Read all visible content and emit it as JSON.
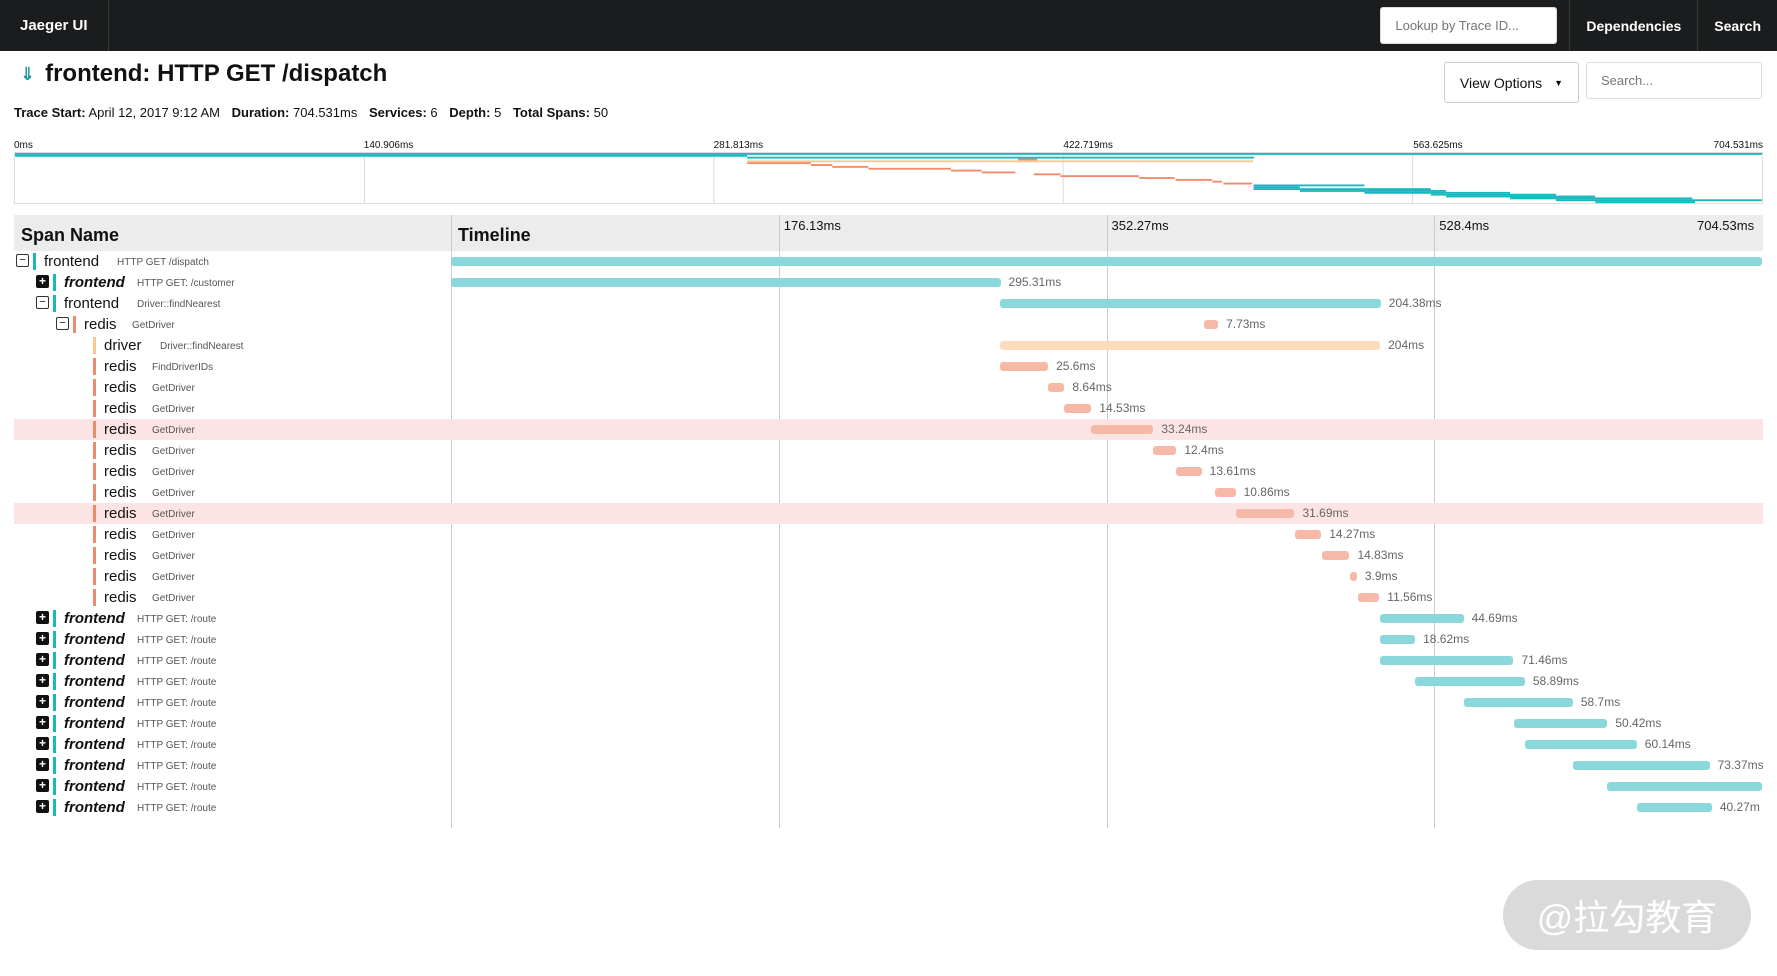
{
  "topbar": {
    "brand": "Jaeger UI",
    "lookup_placeholder": "Lookup by Trace ID...",
    "dependencies": "Dependencies",
    "search": "Search"
  },
  "trace": {
    "title": "frontend: HTTP GET /dispatch",
    "view_options": "View Options",
    "search_placeholder": "Search...",
    "meta": {
      "trace_start_label": "Trace Start:",
      "trace_start": "April 12, 2017 9:12 AM",
      "duration_label": "Duration:",
      "duration": "704.531ms",
      "services_label": "Services:",
      "services": "6",
      "depth_label": "Depth:",
      "depth": "5",
      "total_spans_label": "Total Spans:",
      "total_spans": "50"
    }
  },
  "minimap_ticks": [
    "0ms",
    "140.906ms",
    "281.813ms",
    "422.719ms",
    "563.625ms",
    "704.531ms"
  ],
  "header": {
    "span_name": "Span Name",
    "timeline": "Timeline"
  },
  "timeline_ticks": [
    "176.13ms",
    "352.27ms",
    "528.4ms",
    "704.53ms"
  ],
  "total_ms": 704.53,
  "colors": {
    "frontend": "#8ad7dc",
    "redis": "#f7b9a7",
    "driver": "#fcdcbb",
    "frontend_bar": "#17b8be",
    "redis_bar": "#f08a6c",
    "driver_bar": "#fbc790",
    "highlight": "#fde4e4"
  },
  "spans": [
    {
      "depth": 0,
      "toggle": "minus",
      "service": "frontend",
      "op": "HTTP GET /dispatch",
      "start": 0,
      "dur": 704.53,
      "label": "",
      "kind": "frontend"
    },
    {
      "depth": 1,
      "toggle": "plus",
      "service": "frontend",
      "op": "HTTP GET: /customer",
      "start": 0,
      "dur": 295.31,
      "label": "295.31ms",
      "kind": "frontend"
    },
    {
      "depth": 1,
      "toggle": "minus",
      "service": "frontend",
      "op": "Driver::findNearest",
      "start": 295.3,
      "dur": 204.38,
      "label": "204.38ms",
      "kind": "frontend"
    },
    {
      "depth": 2,
      "toggle": "minus",
      "service": "redis",
      "op": "GetDriver",
      "start": 404.5,
      "dur": 7.73,
      "label": "7.73ms",
      "kind": "redis"
    },
    {
      "depth": 3,
      "toggle": "",
      "service": "driver",
      "op": "Driver::findNearest",
      "start": 295.3,
      "dur": 204,
      "label": "204ms",
      "kind": "driver"
    },
    {
      "depth": 3,
      "toggle": "",
      "service": "redis",
      "op": "FindDriverIDs",
      "start": 295.3,
      "dur": 25.6,
      "label": "25.6ms",
      "kind": "redis"
    },
    {
      "depth": 3,
      "toggle": "",
      "service": "redis",
      "op": "GetDriver",
      "start": 321,
      "dur": 8.64,
      "label": "8.64ms",
      "kind": "redis"
    },
    {
      "depth": 3,
      "toggle": "",
      "service": "redis",
      "op": "GetDriver",
      "start": 329.6,
      "dur": 14.53,
      "label": "14.53ms",
      "kind": "redis"
    },
    {
      "depth": 3,
      "toggle": "",
      "service": "redis",
      "op": "GetDriver",
      "start": 344.2,
      "dur": 33.24,
      "label": "33.24ms",
      "kind": "redis",
      "hl": true
    },
    {
      "depth": 3,
      "toggle": "",
      "service": "redis",
      "op": "GetDriver",
      "start": 377.4,
      "dur": 12.4,
      "label": "12.4ms",
      "kind": "redis"
    },
    {
      "depth": 3,
      "toggle": "",
      "service": "redis",
      "op": "GetDriver",
      "start": 389.8,
      "dur": 13.61,
      "label": "13.61ms",
      "kind": "redis"
    },
    {
      "depth": 3,
      "toggle": "",
      "service": "redis",
      "op": "GetDriver",
      "start": 410.8,
      "dur": 10.86,
      "label": "10.86ms",
      "kind": "redis"
    },
    {
      "depth": 3,
      "toggle": "",
      "service": "redis",
      "op": "GetDriver",
      "start": 421.6,
      "dur": 31.69,
      "label": "31.69ms",
      "kind": "redis",
      "hl": true
    },
    {
      "depth": 3,
      "toggle": "",
      "service": "redis",
      "op": "GetDriver",
      "start": 453.4,
      "dur": 14.27,
      "label": "14.27ms",
      "kind": "redis"
    },
    {
      "depth": 3,
      "toggle": "",
      "service": "redis",
      "op": "GetDriver",
      "start": 468,
      "dur": 14.83,
      "label": "14.83ms",
      "kind": "redis"
    },
    {
      "depth": 3,
      "toggle": "",
      "service": "redis",
      "op": "GetDriver",
      "start": 482.9,
      "dur": 3.9,
      "label": "3.9ms",
      "kind": "redis"
    },
    {
      "depth": 3,
      "toggle": "",
      "service": "redis",
      "op": "GetDriver",
      "start": 487.3,
      "dur": 11.56,
      "label": "11.56ms",
      "kind": "redis"
    },
    {
      "depth": 1,
      "toggle": "plus",
      "service": "frontend",
      "op": "HTTP GET: /route",
      "start": 499.5,
      "dur": 44.69,
      "label": "44.69ms",
      "kind": "frontend"
    },
    {
      "depth": 1,
      "toggle": "plus",
      "service": "frontend",
      "op": "HTTP GET: /route",
      "start": 499.5,
      "dur": 18.62,
      "label": "18.62ms",
      "kind": "frontend"
    },
    {
      "depth": 1,
      "toggle": "plus",
      "service": "frontend",
      "op": "HTTP GET: /route",
      "start": 499.5,
      "dur": 71.46,
      "label": "71.46ms",
      "kind": "frontend"
    },
    {
      "depth": 1,
      "toggle": "plus",
      "service": "frontend",
      "op": "HTTP GET: /route",
      "start": 518.2,
      "dur": 58.89,
      "label": "58.89ms",
      "kind": "frontend"
    },
    {
      "depth": 1,
      "toggle": "plus",
      "service": "frontend",
      "op": "HTTP GET: /route",
      "start": 544.2,
      "dur": 58.7,
      "label": "58.7ms",
      "kind": "frontend"
    },
    {
      "depth": 1,
      "toggle": "plus",
      "service": "frontend",
      "op": "HTTP GET: /route",
      "start": 571,
      "dur": 50.42,
      "label": "50.42ms",
      "kind": "frontend"
    },
    {
      "depth": 1,
      "toggle": "plus",
      "service": "frontend",
      "op": "HTTP GET: /route",
      "start": 577.1,
      "dur": 60.14,
      "label": "60.14ms",
      "kind": "frontend"
    },
    {
      "depth": 1,
      "toggle": "plus",
      "service": "frontend",
      "op": "HTTP GET: /route",
      "start": 603,
      "dur": 73.37,
      "label": "73.37ms",
      "kind": "frontend"
    },
    {
      "depth": 1,
      "toggle": "plus",
      "service": "frontend",
      "op": "HTTP GET: /route",
      "start": 621.4,
      "dur": 83.1,
      "label": "",
      "kind": "frontend"
    },
    {
      "depth": 1,
      "toggle": "plus",
      "service": "frontend",
      "op": "HTTP GET: /route",
      "start": 637.3,
      "dur": 40.27,
      "label": "40.27m",
      "kind": "frontend"
    }
  ],
  "watermark": "@拉勾教育"
}
